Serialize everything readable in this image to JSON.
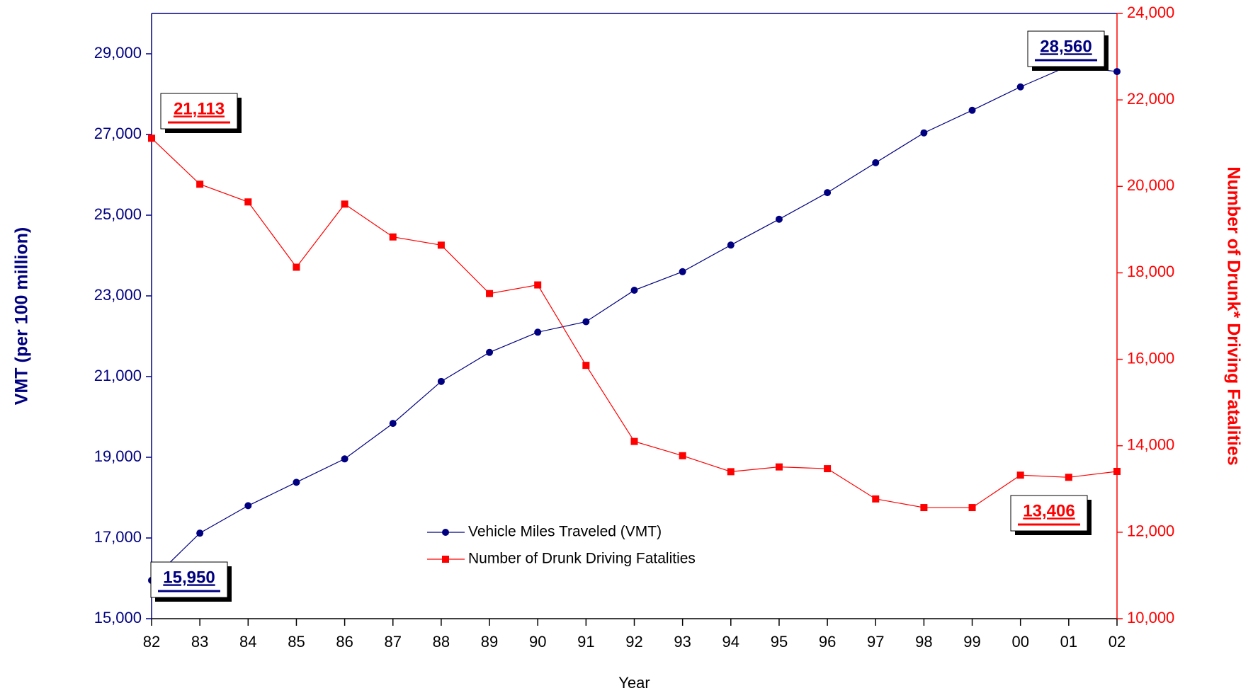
{
  "chart_data": {
    "type": "line",
    "x_label": "Year",
    "y_label": "VMT (per 100 million)",
    "y2_label": "Number of Drunk* Driving Fatalities",
    "categories": [
      "82",
      "83",
      "84",
      "85",
      "86",
      "87",
      "88",
      "89",
      "90",
      "91",
      "92",
      "93",
      "94",
      "95",
      "96",
      "97",
      "98",
      "99",
      "00",
      "01",
      "02"
    ],
    "series": [
      {
        "name": "Vehicle Miles Traveled (VMT)",
        "color": "#000080",
        "marker": "circle",
        "values": [
          15950,
          17120,
          17800,
          18380,
          18960,
          19840,
          20880,
          21600,
          22100,
          22360,
          23140,
          23600,
          24260,
          24900,
          25560,
          26300,
          27040,
          27600,
          28180,
          28700,
          28560
        ],
        "value_labels": [
          "15,950",
          null,
          null,
          null,
          null,
          null,
          null,
          null,
          null,
          null,
          null,
          null,
          null,
          null,
          null,
          null,
          null,
          null,
          null,
          null,
          "28,560"
        ]
      },
      {
        "name": "Number of Drunk Driving Fatalities",
        "color": "#ff0000",
        "marker": "square",
        "axis": "y2",
        "values": [
          21113,
          20050,
          19640,
          18130,
          19590,
          18830,
          18640,
          17520,
          17720,
          15860,
          14100,
          13770,
          13400,
          13510,
          13470,
          12770,
          12570,
          12570,
          13320,
          13270,
          13406
        ],
        "value_labels": [
          "21,113",
          null,
          null,
          null,
          null,
          null,
          null,
          null,
          null,
          null,
          null,
          null,
          null,
          null,
          null,
          null,
          null,
          null,
          null,
          null,
          "13,406"
        ]
      }
    ],
    "ylim": [
      15000,
      30000
    ],
    "yticks": [
      {
        "value": 15000,
        "label": "15,000"
      },
      {
        "value": 17000,
        "label": "17,000"
      },
      {
        "value": 19000,
        "label": "19,000"
      },
      {
        "value": 21000,
        "label": "21,000"
      },
      {
        "value": 23000,
        "label": "23,000"
      },
      {
        "value": 25000,
        "label": "25,000"
      },
      {
        "value": 27000,
        "label": "27,000"
      },
      {
        "value": 29000,
        "label": "29,000"
      }
    ],
    "y2lim": [
      10000,
      24000
    ],
    "y2ticks": [
      {
        "value": 10000,
        "label": "10,000"
      },
      {
        "value": 12000,
        "label": "12,000"
      },
      {
        "value": 14000,
        "label": "14,000"
      },
      {
        "value": 16000,
        "label": "16,000"
      },
      {
        "value": 18000,
        "label": "18,000"
      },
      {
        "value": 20000,
        "label": "20,000"
      },
      {
        "value": 22000,
        "label": "22,000"
      },
      {
        "value": 24000,
        "label": "24,000"
      }
    ],
    "grid": false
  }
}
